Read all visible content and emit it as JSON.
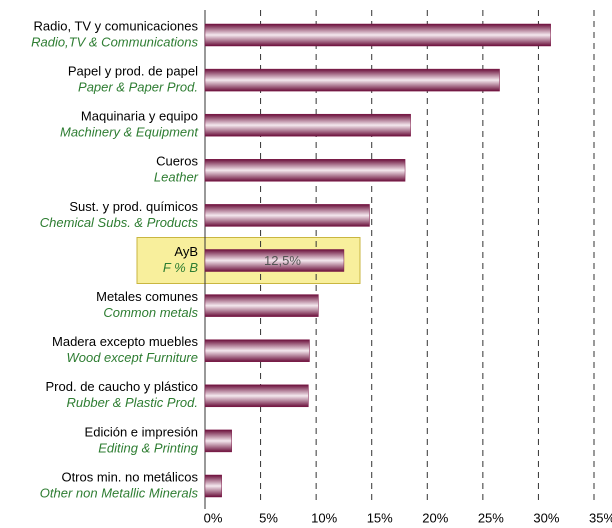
{
  "chart_data": {
    "type": "hbar",
    "categories": [
      "Radio, TV y comunicaciones",
      "Papel y prod. de papel",
      "Maquinaria y equipo",
      "Cueros",
      "Sust. y prod. químicos",
      "AyB",
      "Metales comunes",
      "Madera excepto muebles",
      "Prod. de caucho y plástico",
      "Edición e impresión",
      "Otros min. no metálicos"
    ],
    "categories_en": [
      "Radio,TV & Communications",
      "Paper & Paper Prod.",
      "Machinery & Equipment",
      "Leather",
      "Chemical Subs. & Products",
      "F % B",
      "Common metals",
      "Wood except Furniture",
      "Rubber & Plastic Prod.",
      "Editing & Printing",
      "Other non Metallic Minerals"
    ],
    "values": [
      31.1,
      26.5,
      18.5,
      18,
      14.8,
      12.5,
      10.2,
      9.4,
      9.3,
      2.4,
      1.5
    ],
    "value_labels": [
      null,
      null,
      null,
      null,
      null,
      "12,5%",
      null,
      null,
      null,
      null,
      null
    ],
    "color": "#7a1444",
    "xlim": [
      0,
      35
    ],
    "xticks": [
      {
        "value": 0,
        "label": "0%"
      },
      {
        "value": 5,
        "label": "5%"
      },
      {
        "value": 10,
        "label": "10%"
      },
      {
        "value": 15,
        "label": "15%"
      },
      {
        "value": 20,
        "label": "20%"
      },
      {
        "value": 25,
        "label": "25%"
      },
      {
        "value": 30,
        "label": "30%"
      },
      {
        "value": 35,
        "label": "35%"
      }
    ],
    "grid": true
  }
}
